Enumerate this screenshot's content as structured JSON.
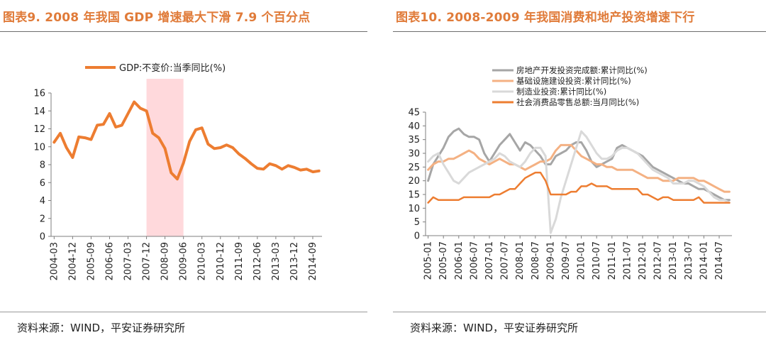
{
  "left": {
    "title": "图表9. 2008 年我国 GDP 增速最大下滑 7.9 个百分点",
    "source": "资料来源：WIND，平安证券研究所",
    "chart_data": {
      "type": "line",
      "title": "2008 年我国 GDP 增速最大下滑 7.9 个百分点",
      "xlabel": "",
      "ylabel": "",
      "ylim": [
        0,
        16
      ],
      "yticks": [
        0,
        2,
        4,
        6,
        8,
        10,
        12,
        14,
        16
      ],
      "grid": false,
      "legend_position": "top",
      "x": [
        "2004-03",
        "2004-06",
        "2004-09",
        "2004-12",
        "2005-03",
        "2005-06",
        "2005-09",
        "2005-12",
        "2006-03",
        "2006-06",
        "2006-09",
        "2006-12",
        "2007-03",
        "2007-06",
        "2007-09",
        "2007-12",
        "2008-03",
        "2008-06",
        "2008-09",
        "2008-12",
        "2009-03",
        "2009-06",
        "2009-09",
        "2009-12",
        "2010-03",
        "2010-06",
        "2010-09",
        "2010-12",
        "2011-03",
        "2011-06",
        "2011-09",
        "2011-12",
        "2012-03",
        "2012-06",
        "2012-09",
        "2012-12",
        "2013-03",
        "2013-06",
        "2013-09",
        "2013-12",
        "2014-03",
        "2014-06",
        "2014-09",
        "2014-12"
      ],
      "xtick_labels": [
        "2004-03",
        "2004-12",
        "2005-09",
        "2006-06",
        "2007-03",
        "2007-12",
        "2008-09",
        "2009-06",
        "2010-03",
        "2010-12",
        "2011-09",
        "2012-06",
        "2013-03",
        "2013-12",
        "2014-09"
      ],
      "series": [
        {
          "name": "GDP:不变价:当季同比(%)",
          "color": "#ed7d31",
          "values": [
            10.5,
            11.5,
            9.9,
            8.8,
            11.1,
            11.0,
            10.8,
            12.4,
            12.5,
            13.7,
            12.2,
            12.4,
            13.7,
            15.0,
            14.3,
            14.0,
            11.5,
            11.0,
            9.8,
            7.1,
            6.4,
            8.2,
            10.6,
            11.9,
            12.1,
            10.3,
            9.8,
            9.9,
            10.2,
            9.9,
            9.2,
            8.7,
            8.1,
            7.6,
            7.5,
            8.1,
            7.9,
            7.5,
            7.9,
            7.7,
            7.4,
            7.5,
            7.2,
            7.3
          ]
        }
      ],
      "annotations": [
        {
          "type": "shaded-range",
          "from": "2007-12",
          "to": "2009-06",
          "color": "#ffd9dc"
        }
      ]
    }
  },
  "right": {
    "title": "图表10. 2008-2009 年我国消费和地产投资增速下行",
    "source": "资料来源：WIND，平安证券研究所",
    "chart_data": {
      "type": "line",
      "title": "2008-2009 年我国消费和地产投资增速下行",
      "xlabel": "",
      "ylabel": "",
      "ylim": [
        0,
        45
      ],
      "yticks": [
        0,
        5,
        10,
        15,
        20,
        25,
        30,
        35,
        40,
        45
      ],
      "grid": false,
      "legend_position": "top-left",
      "x": [
        "2005-01",
        "2005-03",
        "2005-05",
        "2005-07",
        "2005-09",
        "2005-11",
        "2006-01",
        "2006-03",
        "2006-05",
        "2006-07",
        "2006-09",
        "2006-11",
        "2007-01",
        "2007-03",
        "2007-05",
        "2007-07",
        "2007-09",
        "2007-11",
        "2008-01",
        "2008-03",
        "2008-05",
        "2008-07",
        "2008-09",
        "2008-11",
        "2009-01",
        "2009-03",
        "2009-05",
        "2009-07",
        "2009-09",
        "2009-11",
        "2010-01",
        "2010-03",
        "2010-05",
        "2010-07",
        "2010-09",
        "2010-11",
        "2011-01",
        "2011-03",
        "2011-05",
        "2011-07",
        "2011-09",
        "2011-11",
        "2012-01",
        "2012-03",
        "2012-05",
        "2012-07",
        "2012-09",
        "2012-11",
        "2013-01",
        "2013-03",
        "2013-05",
        "2013-07",
        "2013-09",
        "2013-11",
        "2014-01",
        "2014-03",
        "2014-05",
        "2014-07",
        "2014-09",
        "2014-11"
      ],
      "xtick_labels": [
        "2005-01",
        "2005-07",
        "2006-01",
        "2006-07",
        "2007-01",
        "2007-07",
        "2008-01",
        "2008-07",
        "2009-01",
        "2009-07",
        "2010-01",
        "2010-07",
        "2011-01",
        "2011-07",
        "2012-01",
        "2012-07",
        "2013-01",
        "2013-07",
        "2014-01",
        "2014-07"
      ],
      "series": [
        {
          "name": "房地产开发投资完成额:累计同比(%)",
          "color": "#a6a6a6",
          "values": [
            20,
            26,
            29,
            32,
            36,
            38,
            39,
            37,
            36,
            36,
            35,
            30,
            27,
            30,
            33,
            35,
            37,
            34,
            31,
            34,
            33,
            31,
            29,
            26,
            26,
            29,
            30,
            31,
            33,
            34,
            34,
            31,
            27,
            25,
            26,
            27,
            28,
            32,
            33,
            32,
            31,
            30,
            29,
            27,
            25,
            24,
            23,
            22,
            21,
            20,
            19,
            19,
            18,
            17,
            17,
            16,
            15,
            14,
            13,
            13
          ]
        },
        {
          "name": "基础设施建设投资:累计同比(%)",
          "color": "#f4b183",
          "values": [
            24,
            26,
            27,
            27,
            28,
            28,
            29,
            30,
            31,
            30,
            28,
            27,
            26,
            27,
            28,
            27,
            26,
            26,
            25,
            24,
            25,
            26,
            27,
            27,
            28,
            31,
            33,
            33,
            33,
            31,
            29,
            28,
            27,
            26,
            26,
            25,
            25,
            24,
            24,
            24,
            24,
            23,
            22,
            21,
            21,
            21,
            20,
            20,
            20,
            21,
            21,
            21,
            21,
            20,
            20,
            19,
            18,
            17,
            16,
            16
          ]
        },
        {
          "name": "制造业投资:累计同比(%)",
          "color": "#d9d9d9",
          "values": [
            27,
            29,
            30,
            26,
            23,
            20,
            19,
            21,
            23,
            24,
            25,
            26,
            27,
            28,
            30,
            29,
            27,
            26,
            25,
            27,
            30,
            32,
            32,
            29,
            1,
            6,
            14,
            20,
            26,
            32,
            38,
            36,
            33,
            30,
            28,
            28,
            29,
            31,
            32,
            32,
            31,
            30,
            28,
            26,
            24,
            23,
            22,
            21,
            19,
            19,
            19,
            20,
            20,
            19,
            18,
            16,
            14,
            13,
            13,
            12
          ]
        },
        {
          "name": "社会消费品零售总额:当月同比(%)",
          "color": "#ed7d31",
          "values": [
            12,
            14,
            13,
            13,
            13,
            13,
            13,
            14,
            14,
            14,
            14,
            14,
            14,
            15,
            15,
            16,
            17,
            17,
            19,
            21,
            22,
            23,
            23,
            20,
            15,
            15,
            15,
            15,
            16,
            16,
            18,
            18,
            19,
            18,
            18,
            18,
            17,
            17,
            17,
            17,
            17,
            17,
            15,
            15,
            14,
            13,
            14,
            14,
            13,
            13,
            13,
            13,
            13,
            14,
            12,
            12,
            12,
            12,
            12,
            12
          ]
        }
      ]
    }
  }
}
